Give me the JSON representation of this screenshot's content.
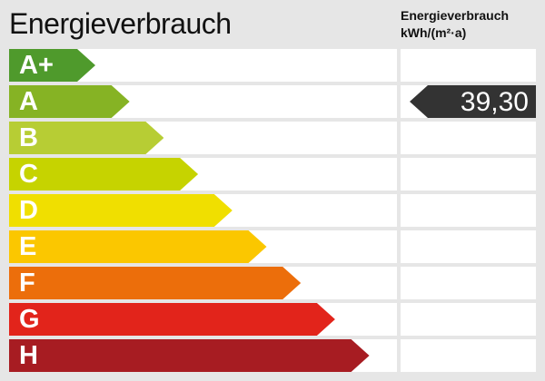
{
  "title": "Energieverbrauch",
  "unit_line1": "Energieverbrauch",
  "unit_line2": "kWh/(m²·a)",
  "chart_data": {
    "type": "bar",
    "categories": [
      "A+",
      "A",
      "B",
      "C",
      "D",
      "E",
      "F",
      "G",
      "H"
    ],
    "colors": [
      "#4f9a2c",
      "#86b324",
      "#b7cd34",
      "#c6d300",
      "#f0df00",
      "#fbc700",
      "#ec6e0b",
      "#e2241b",
      "#a71c22"
    ],
    "indicator": {
      "class": "A",
      "value": "39,30",
      "color": "#333333"
    }
  }
}
